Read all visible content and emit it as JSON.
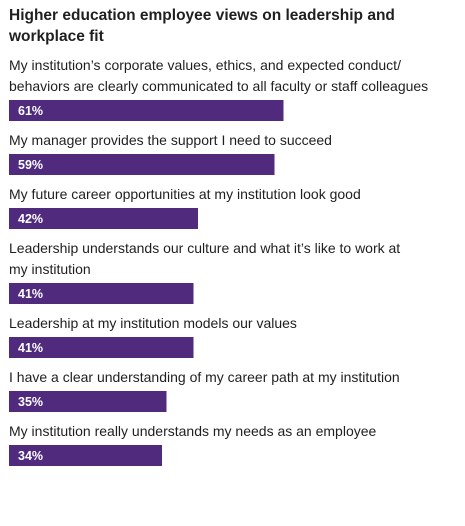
{
  "chart_data": {
    "type": "bar",
    "orientation": "horizontal",
    "title_lines": [
      "Higher education employee views on leadership and",
      "workplace fit"
    ],
    "categories": [
      [
        "My institution’s corporate values, ethics, and expected conduct/",
        "behaviors are clearly communicated to all faculty or staff colleagues"
      ],
      [
        "My manager provides the support I need to succeed"
      ],
      [
        "My future career opportunities at my institution look good"
      ],
      [
        "Leadership understands our culture and what it’s like to work at",
        "my institution"
      ],
      [
        "Leadership at my institution models our values"
      ],
      [
        "I have a clear understanding of my career path at my institution"
      ],
      [
        "My institution really understands my needs as an employee"
      ]
    ],
    "values": [
      61,
      59,
      42,
      41,
      41,
      35,
      34
    ],
    "value_labels": [
      "61%",
      "59%",
      "42%",
      "41%",
      "41%",
      "35%",
      "34%"
    ],
    "unit": "%",
    "xlim": [
      0,
      100
    ],
    "grid": false,
    "legend": "none",
    "colors": {
      "bar": "#4f2a7d",
      "bar_label": "#ffffff",
      "text": "#1f1f1f",
      "background": "#ffffff"
    }
  }
}
